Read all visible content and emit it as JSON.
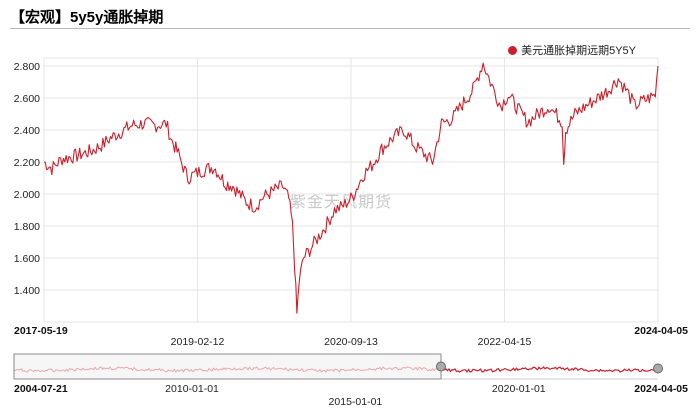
{
  "page": {
    "title": "【宏观】5y5y通胀掉期"
  },
  "watermark": "紫金天风期货",
  "colors": {
    "series": "#cc1f2b",
    "series_light": "#f0a8ac",
    "grid": "#e6e6e6",
    "handle": "#aaaaaa"
  },
  "chart_data": {
    "type": "line",
    "title": "【宏观】5y5y通胀掉期",
    "xlabel": "",
    "ylabel": "",
    "grid": true,
    "legend_position": "top-right",
    "x_range": [
      "2017-05-19",
      "2024-04-05"
    ],
    "ylim": [
      1.2,
      2.85
    ],
    "y_ticks": [
      "2.800",
      "2.600",
      "2.400",
      "2.200",
      "2.000",
      "1.800",
      "1.600",
      "1.400"
    ],
    "x_ticks": [
      {
        "label": "2017-05-19",
        "bold": true
      },
      {
        "label": "2019-02-12",
        "bold": false
      },
      {
        "label": "2020-09-13",
        "bold": false
      },
      {
        "label": "2022-04-15",
        "bold": false
      },
      {
        "label": "2024-04-05",
        "bold": true
      }
    ],
    "series": [
      {
        "name": "美元通胀掉期远期5Y5Y",
        "points": [
          [
            "2017-05-19",
            2.2
          ],
          [
            "2017-06-20",
            2.16
          ],
          [
            "2017-08-01",
            2.22
          ],
          [
            "2017-10-01",
            2.24
          ],
          [
            "2017-12-01",
            2.27
          ],
          [
            "2018-01-15",
            2.31
          ],
          [
            "2018-02-15",
            2.35
          ],
          [
            "2018-04-01",
            2.39
          ],
          [
            "2018-05-15",
            2.43
          ],
          [
            "2018-07-01",
            2.44
          ],
          [
            "2018-08-15",
            2.43
          ],
          [
            "2018-10-01",
            2.44
          ],
          [
            "2018-10-25",
            2.33
          ],
          [
            "2018-11-20",
            2.25
          ],
          [
            "2018-12-10",
            2.17
          ],
          [
            "2018-12-28",
            2.1
          ],
          [
            "2019-01-20",
            2.12
          ],
          [
            "2019-03-01",
            2.15
          ],
          [
            "2019-04-15",
            2.17
          ],
          [
            "2019-05-30",
            2.07
          ],
          [
            "2019-07-01",
            2.05
          ],
          [
            "2019-08-25",
            1.95
          ],
          [
            "2019-10-01",
            1.92
          ],
          [
            "2019-11-01",
            1.98
          ],
          [
            "2019-12-15",
            2.02
          ],
          [
            "2020-01-20",
            2.05
          ],
          [
            "2020-02-15",
            1.97
          ],
          [
            "2020-03-01",
            1.8
          ],
          [
            "2020-03-10",
            1.55
          ],
          [
            "2020-03-19",
            1.25
          ],
          [
            "2020-03-28",
            1.45
          ],
          [
            "2020-04-15",
            1.6
          ],
          [
            "2020-05-10",
            1.65
          ],
          [
            "2020-06-10",
            1.72
          ],
          [
            "2020-07-15",
            1.8
          ],
          [
            "2020-08-20",
            1.9
          ],
          [
            "2020-09-20",
            1.92
          ],
          [
            "2020-11-01",
            1.98
          ],
          [
            "2020-12-15",
            2.12
          ],
          [
            "2021-01-20",
            2.18
          ],
          [
            "2021-03-01",
            2.28
          ],
          [
            "2021-04-15",
            2.35
          ],
          [
            "2021-06-01",
            2.4
          ],
          [
            "2021-07-15",
            2.3
          ],
          [
            "2021-08-15",
            2.26
          ],
          [
            "2021-09-25",
            2.2
          ],
          [
            "2021-11-01",
            2.44
          ],
          [
            "2021-12-15",
            2.47
          ],
          [
            "2022-01-20",
            2.55
          ],
          [
            "2022-03-10",
            2.65
          ],
          [
            "2022-04-20",
            2.82
          ],
          [
            "2022-05-20",
            2.7
          ],
          [
            "2022-07-01",
            2.55
          ],
          [
            "2022-08-01",
            2.62
          ],
          [
            "2022-09-15",
            2.52
          ],
          [
            "2022-10-20",
            2.45
          ],
          [
            "2022-12-01",
            2.5
          ],
          [
            "2023-01-15",
            2.55
          ],
          [
            "2023-03-10",
            2.45
          ],
          [
            "2023-03-16",
            2.2
          ],
          [
            "2023-03-24",
            2.4
          ],
          [
            "2023-05-01",
            2.5
          ],
          [
            "2023-06-15",
            2.55
          ],
          [
            "2023-08-01",
            2.6
          ],
          [
            "2023-09-15",
            2.65
          ],
          [
            "2023-10-25",
            2.72
          ],
          [
            "2023-12-01",
            2.64
          ],
          [
            "2024-01-01",
            2.55
          ],
          [
            "2024-02-01",
            2.58
          ],
          [
            "2024-03-01",
            2.6
          ],
          [
            "2024-03-25",
            2.62
          ],
          [
            "2024-04-05",
            2.8
          ]
        ]
      }
    ],
    "navigator": {
      "range": [
        "2004-07-21",
        "2024-04-05"
      ],
      "selected": [
        "2017-05-19",
        "2024-04-05"
      ],
      "x_ticks": [
        "2004-07-21",
        "2010-01-01",
        "2015-01-01",
        "2020-01-01",
        "2024-04-05"
      ]
    }
  }
}
